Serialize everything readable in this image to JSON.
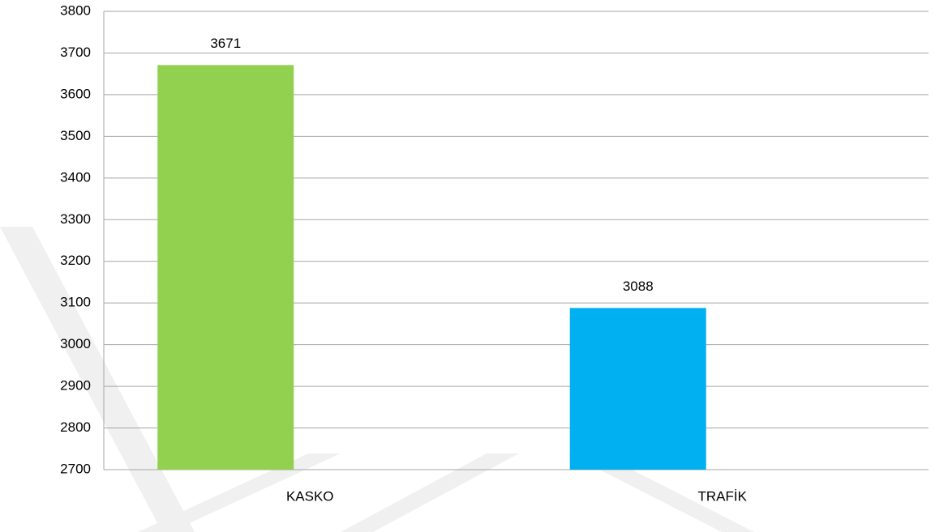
{
  "chart_data": {
    "type": "bar",
    "categories": [
      "KASKO",
      "TRAFİK"
    ],
    "values": [
      3671,
      3088
    ],
    "colors": [
      "#92d050",
      "#00b0f0"
    ],
    "ylim": [
      2700,
      3800
    ],
    "yticks": [
      2700,
      2800,
      2900,
      3000,
      3100,
      3200,
      3300,
      3400,
      3500,
      3600,
      3700,
      3800
    ],
    "grid": true
  }
}
